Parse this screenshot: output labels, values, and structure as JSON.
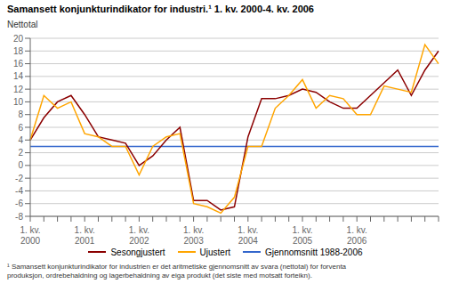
{
  "chart_data": {
    "type": "line",
    "title": "Samansett konjunkturindikator for industri.¹ 1. kv. 2000-4. kv. 2006",
    "ylabel": "Nettotal",
    "footnote": "¹ Samansett konjunkturindikator for industrien er det aritmetiske gjennomsnitt av svara (nettotal) for forventa\nproduksjon, ordrebehaldning og lagerbehaldning av eiga produkt (det siste med motsatt forteikn).",
    "categories": [
      "1. kv.\n2000",
      null,
      null,
      null,
      "1. kv.\n2001",
      null,
      null,
      null,
      "1. kv.\n2002",
      null,
      null,
      null,
      "1. kv.\n2003",
      null,
      null,
      null,
      "1. kv.\n2004",
      null,
      null,
      null,
      "1. kv.\n2005",
      null,
      null,
      null,
      "1. kv.\n2006",
      null,
      null,
      null,
      null,
      null,
      null
    ],
    "series": [
      {
        "name": "Sesongjustert",
        "color": "#8B0000",
        "values": [
          4.0,
          7.5,
          10.0,
          11.0,
          8.0,
          4.5,
          4.0,
          3.5,
          0.0,
          1.5,
          4.0,
          6.0,
          -5.5,
          -5.5,
          -7.0,
          -6.5,
          4.5,
          10.5,
          10.5,
          11.0,
          12.0,
          11.5,
          10.0,
          9.0,
          9.0,
          11.0,
          13.0,
          15.0,
          11.0,
          15.0,
          18.0
        ]
      },
      {
        "name": "Ujustert",
        "color": "#FFA500",
        "values": [
          4.0,
          11.0,
          9.0,
          10.0,
          5.0,
          4.5,
          3.0,
          3.0,
          -1.5,
          3.0,
          4.5,
          5.0,
          -6.0,
          -6.5,
          -7.5,
          -5.0,
          3.0,
          3.0,
          9.0,
          11.0,
          13.5,
          9.0,
          11.0,
          10.5,
          8.0,
          8.0,
          12.5,
          12.0,
          11.5,
          19.0,
          16.0
        ]
      }
    ],
    "reference_lines": [
      {
        "name": "Gjennomsnitt 1988-2006",
        "value": 3.0,
        "color": "#3366CC"
      }
    ],
    "ylim": [
      -8,
      20
    ],
    "yticks": [
      -8,
      -6,
      -4,
      -2,
      0,
      2,
      4,
      6,
      8,
      10,
      12,
      14,
      16,
      18,
      20
    ],
    "grid": true
  }
}
